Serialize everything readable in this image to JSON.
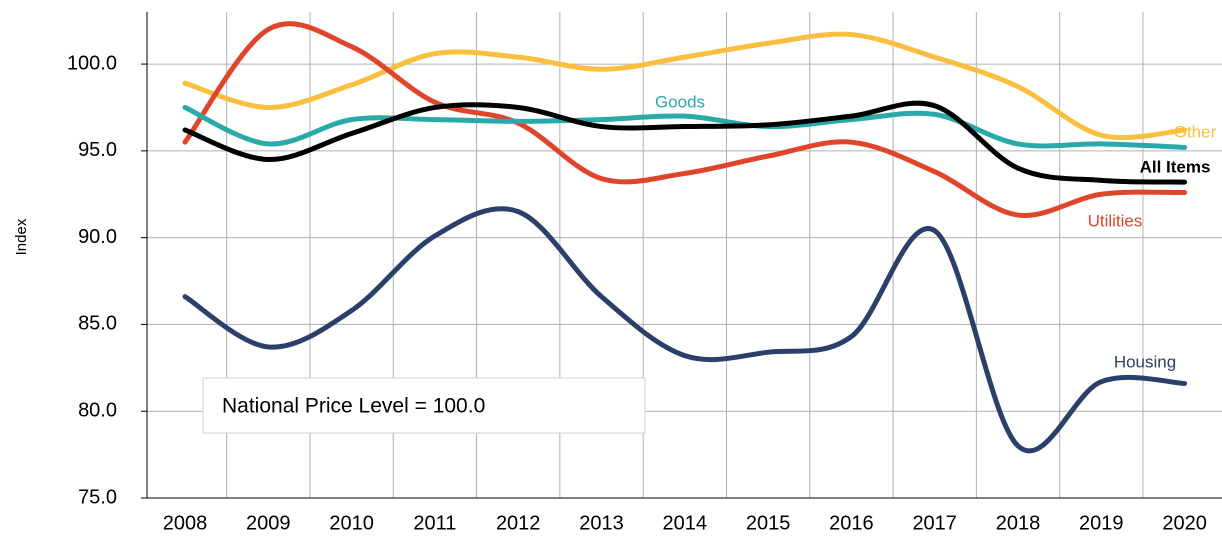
{
  "chart_data": {
    "type": "line",
    "y_axis_label": "Index",
    "annotation": "National Price Level = 100.0",
    "categories": [
      "2008",
      "2009",
      "2010",
      "2011",
      "2012",
      "2013",
      "2014",
      "2015",
      "2016",
      "2017",
      "2018",
      "2019",
      "2020"
    ],
    "series": [
      {
        "name": "Other",
        "color": "#fbbf3f",
        "values": [
          98.9,
          97.5,
          98.8,
          100.6,
          100.4,
          99.7,
          100.4,
          101.2,
          101.7,
          100.4,
          98.7,
          95.9,
          96.2
        ]
      },
      {
        "name": "Utilities",
        "color": "#e0452c",
        "values": [
          95.5,
          102.0,
          101.0,
          97.8,
          96.6,
          93.4,
          93.7,
          94.7,
          95.5,
          93.8,
          91.3,
          92.5,
          92.6
        ]
      },
      {
        "name": "Goods",
        "color": "#2aa9a9",
        "values": [
          97.5,
          95.4,
          96.8,
          96.8,
          96.7,
          96.8,
          97.0,
          96.4,
          96.8,
          97.1,
          95.4,
          95.4,
          95.2
        ]
      },
      {
        "name": "All Items",
        "color": "#000000",
        "values": [
          96.2,
          94.5,
          96.0,
          97.5,
          97.5,
          96.4,
          96.4,
          96.5,
          97.0,
          97.6,
          94.0,
          93.3,
          93.2
        ]
      },
      {
        "name": "Housing",
        "color": "#2b3f6b",
        "values": [
          86.6,
          83.7,
          85.8,
          90.1,
          91.5,
          86.6,
          83.2,
          83.4,
          84.3,
          90.4,
          78.0,
          81.7,
          81.6
        ]
      }
    ],
    "ylim": [
      75,
      103
    ],
    "yticks": [
      {
        "value": 75,
        "label": "75.0"
      },
      {
        "value": 80,
        "label": "80.0"
      },
      {
        "value": 85,
        "label": "85.0"
      },
      {
        "value": 90,
        "label": "90.0"
      },
      {
        "value": 95,
        "label": "95.0"
      },
      {
        "value": 100,
        "label": "100.0"
      }
    ],
    "grid": true
  }
}
